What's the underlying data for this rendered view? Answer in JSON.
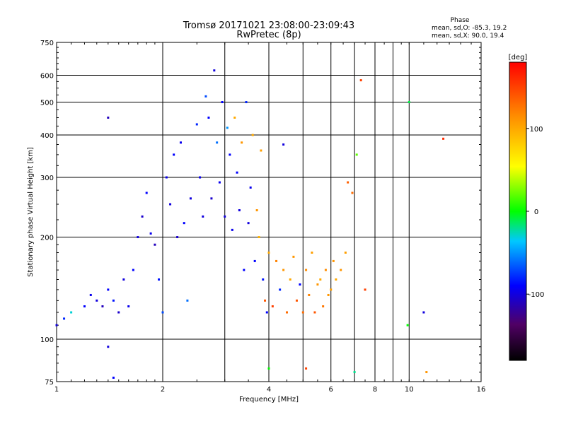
{
  "chart_data": {
    "type": "scatter",
    "title": "Tromsø 20171021 23:08:00-23:09:43",
    "subtitle": "RwPretec (8p)",
    "xlabel": "Frequency [MHz]",
    "ylabel": "Stationary phase Virtual Height [km]",
    "x_scale": "log",
    "y_scale": "log",
    "xlim": [
      1,
      16
    ],
    "ylim": [
      75,
      750
    ],
    "x_ticks": [
      "1",
      "2",
      "4",
      "6",
      "8",
      "10",
      "16"
    ],
    "y_ticks": [
      "75",
      "100",
      "200",
      "300",
      "400",
      "500",
      "600",
      "750"
    ],
    "grid": true,
    "stats": {
      "heading": "Phase",
      "line_o": "mean, sd,O:  -85.3, 19.2",
      "line_x": "mean, sd,X:  90.0, 19.4"
    },
    "colorbar": {
      "label": "[deg]",
      "range": [
        -180,
        180
      ],
      "ticks": [
        "100",
        "0",
        "-100"
      ]
    },
    "points": [
      {
        "x": 1.0,
        "y": 110,
        "phase": -100
      },
      {
        "x": 1.05,
        "y": 115,
        "phase": -80
      },
      {
        "x": 1.1,
        "y": 120,
        "phase": -30
      },
      {
        "x": 1.2,
        "y": 125,
        "phase": -90
      },
      {
        "x": 1.25,
        "y": 135,
        "phase": -95
      },
      {
        "x": 1.3,
        "y": 130,
        "phase": -100
      },
      {
        "x": 1.35,
        "y": 125,
        "phase": -110
      },
      {
        "x": 1.4,
        "y": 140,
        "phase": -90
      },
      {
        "x": 1.45,
        "y": 130,
        "phase": -85
      },
      {
        "x": 1.5,
        "y": 120,
        "phase": -105
      },
      {
        "x": 1.55,
        "y": 150,
        "phase": -100
      },
      {
        "x": 1.6,
        "y": 125,
        "phase": -95
      },
      {
        "x": 1.65,
        "y": 160,
        "phase": -90
      },
      {
        "x": 1.7,
        "y": 200,
        "phase": -100
      },
      {
        "x": 1.75,
        "y": 230,
        "phase": -105
      },
      {
        "x": 1.8,
        "y": 270,
        "phase": -90
      },
      {
        "x": 1.85,
        "y": 205,
        "phase": -95
      },
      {
        "x": 1.9,
        "y": 190,
        "phase": -110
      },
      {
        "x": 1.95,
        "y": 150,
        "phase": -85
      },
      {
        "x": 2.0,
        "y": 120,
        "phase": -70
      },
      {
        "x": 2.05,
        "y": 300,
        "phase": -95
      },
      {
        "x": 2.1,
        "y": 250,
        "phase": -100
      },
      {
        "x": 2.15,
        "y": 350,
        "phase": -90
      },
      {
        "x": 2.2,
        "y": 200,
        "phase": -105
      },
      {
        "x": 2.25,
        "y": 380,
        "phase": -95
      },
      {
        "x": 2.3,
        "y": 220,
        "phase": -90
      },
      {
        "x": 2.35,
        "y": 130,
        "phase": -60
      },
      {
        "x": 2.4,
        "y": 260,
        "phase": -100
      },
      {
        "x": 2.5,
        "y": 430,
        "phase": -80
      },
      {
        "x": 2.55,
        "y": 300,
        "phase": -95
      },
      {
        "x": 2.6,
        "y": 230,
        "phase": -100
      },
      {
        "x": 2.65,
        "y": 520,
        "phase": -70
      },
      {
        "x": 2.7,
        "y": 450,
        "phase": -90
      },
      {
        "x": 2.75,
        "y": 260,
        "phase": -105
      },
      {
        "x": 2.8,
        "y": 620,
        "phase": -100
      },
      {
        "x": 2.85,
        "y": 380,
        "phase": -60
      },
      {
        "x": 2.9,
        "y": 290,
        "phase": -95
      },
      {
        "x": 2.95,
        "y": 500,
        "phase": -90
      },
      {
        "x": 3.0,
        "y": 230,
        "phase": -100
      },
      {
        "x": 3.05,
        "y": 420,
        "phase": -50
      },
      {
        "x": 3.1,
        "y": 350,
        "phase": -90
      },
      {
        "x": 3.15,
        "y": 210,
        "phase": -95
      },
      {
        "x": 3.2,
        "y": 450,
        "phase": 100
      },
      {
        "x": 3.25,
        "y": 310,
        "phase": -90
      },
      {
        "x": 3.3,
        "y": 240,
        "phase": -100
      },
      {
        "x": 3.35,
        "y": 380,
        "phase": 110
      },
      {
        "x": 3.4,
        "y": 160,
        "phase": -90
      },
      {
        "x": 3.45,
        "y": 500,
        "phase": -80
      },
      {
        "x": 3.5,
        "y": 220,
        "phase": -100
      },
      {
        "x": 3.55,
        "y": 280,
        "phase": -95
      },
      {
        "x": 3.6,
        "y": 400,
        "phase": 100
      },
      {
        "x": 3.65,
        "y": 170,
        "phase": -90
      },
      {
        "x": 3.7,
        "y": 240,
        "phase": 110
      },
      {
        "x": 3.75,
        "y": 200,
        "phase": 95
      },
      {
        "x": 3.8,
        "y": 360,
        "phase": 105
      },
      {
        "x": 3.85,
        "y": 150,
        "phase": -85
      },
      {
        "x": 3.9,
        "y": 130,
        "phase": 140
      },
      {
        "x": 3.95,
        "y": 120,
        "phase": -90
      },
      {
        "x": 4.0,
        "y": 180,
        "phase": 100
      },
      {
        "x": 4.1,
        "y": 125,
        "phase": 150
      },
      {
        "x": 4.2,
        "y": 170,
        "phase": 120
      },
      {
        "x": 4.3,
        "y": 140,
        "phase": -80
      },
      {
        "x": 4.4,
        "y": 160,
        "phase": 110
      },
      {
        "x": 4.5,
        "y": 120,
        "phase": 130
      },
      {
        "x": 4.6,
        "y": 150,
        "phase": 100
      },
      {
        "x": 4.7,
        "y": 175,
        "phase": 110
      },
      {
        "x": 4.8,
        "y": 130,
        "phase": 140
      },
      {
        "x": 4.9,
        "y": 145,
        "phase": -90
      },
      {
        "x": 5.0,
        "y": 120,
        "phase": 130
      },
      {
        "x": 5.1,
        "y": 160,
        "phase": 115
      },
      {
        "x": 5.2,
        "y": 135,
        "phase": 120
      },
      {
        "x": 5.3,
        "y": 180,
        "phase": 105
      },
      {
        "x": 5.4,
        "y": 120,
        "phase": 140
      },
      {
        "x": 5.5,
        "y": 145,
        "phase": 110
      },
      {
        "x": 5.6,
        "y": 150,
        "phase": 100
      },
      {
        "x": 5.7,
        "y": 125,
        "phase": 125
      },
      {
        "x": 5.8,
        "y": 160,
        "phase": 115
      },
      {
        "x": 5.9,
        "y": 135,
        "phase": 110
      },
      {
        "x": 6.0,
        "y": 140,
        "phase": 105
      },
      {
        "x": 6.1,
        "y": 170,
        "phase": 110
      },
      {
        "x": 6.2,
        "y": 150,
        "phase": 100
      },
      {
        "x": 6.4,
        "y": 160,
        "phase": 110
      },
      {
        "x": 6.6,
        "y": 180,
        "phase": 105
      },
      {
        "x": 6.7,
        "y": 290,
        "phase": 135
      },
      {
        "x": 6.9,
        "y": 270,
        "phase": 130
      },
      {
        "x": 7.1,
        "y": 350,
        "phase": 20
      },
      {
        "x": 7.3,
        "y": 580,
        "phase": 150
      },
      {
        "x": 7.5,
        "y": 140,
        "phase": 150
      },
      {
        "x": 9.9,
        "y": 110,
        "phase": 0
      },
      {
        "x": 10.0,
        "y": 500,
        "phase": -10
      },
      {
        "x": 11.0,
        "y": 120,
        "phase": -100
      },
      {
        "x": 11.2,
        "y": 80,
        "phase": 110
      },
      {
        "x": 12.5,
        "y": 390,
        "phase": 160
      },
      {
        "x": 1.4,
        "y": 450,
        "phase": -110
      },
      {
        "x": 1.4,
        "y": 95,
        "phase": -100
      },
      {
        "x": 1.45,
        "y": 77,
        "phase": -90
      },
      {
        "x": 4.0,
        "y": 82,
        "phase": 0
      },
      {
        "x": 4.4,
        "y": 375,
        "phase": -100
      },
      {
        "x": 5.1,
        "y": 82,
        "phase": 150
      },
      {
        "x": 7.0,
        "y": 80,
        "phase": -20
      }
    ]
  }
}
